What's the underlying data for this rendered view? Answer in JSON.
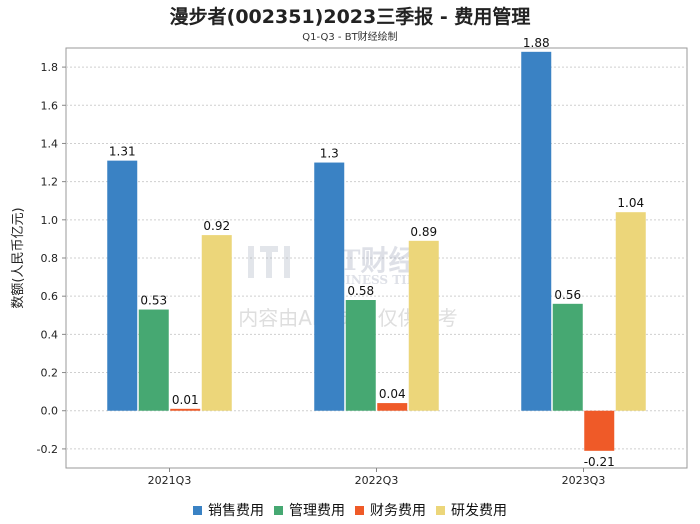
{
  "chart_data": {
    "type": "bar",
    "title": "漫步者(002351)2023三季报 - 费用管理",
    "subtitle": "Q1-Q3 - BT财经绘制",
    "ylabel": "数额(人民币亿元)",
    "xlabel": "",
    "categories": [
      "2021Q3",
      "2022Q3",
      "2023Q3"
    ],
    "ylim": [
      -0.3,
      1.9
    ],
    "yticks": [
      -0.2,
      0.0,
      0.2,
      0.4,
      0.6,
      0.8,
      1.0,
      1.2,
      1.4,
      1.6,
      1.8
    ],
    "grid": true,
    "legend_position": "bottom",
    "series": [
      {
        "name": "销售费用",
        "color": "#3a82c4",
        "values": [
          1.31,
          1.3,
          1.88
        ],
        "labels": [
          "1.31",
          "1.3",
          "1.88"
        ]
      },
      {
        "name": "管理费用",
        "color": "#46a872",
        "values": [
          0.53,
          0.58,
          0.56
        ],
        "labels": [
          "0.53",
          "0.58",
          "0.56"
        ]
      },
      {
        "name": "财务费用",
        "color": "#ef5a28",
        "values": [
          0.01,
          0.04,
          -0.21
        ],
        "labels": [
          "0.01",
          "0.04",
          "-0.21"
        ]
      },
      {
        "name": "研发费用",
        "color": "#ecd67a",
        "values": [
          0.92,
          0.89,
          1.04
        ],
        "labels": [
          "0.92",
          "0.89",
          "1.04"
        ]
      }
    ]
  },
  "watermark": {
    "logo": "BT财经",
    "brand": "BUSINESS TIMES",
    "notice": "内容由AI生成，仅供参考"
  }
}
